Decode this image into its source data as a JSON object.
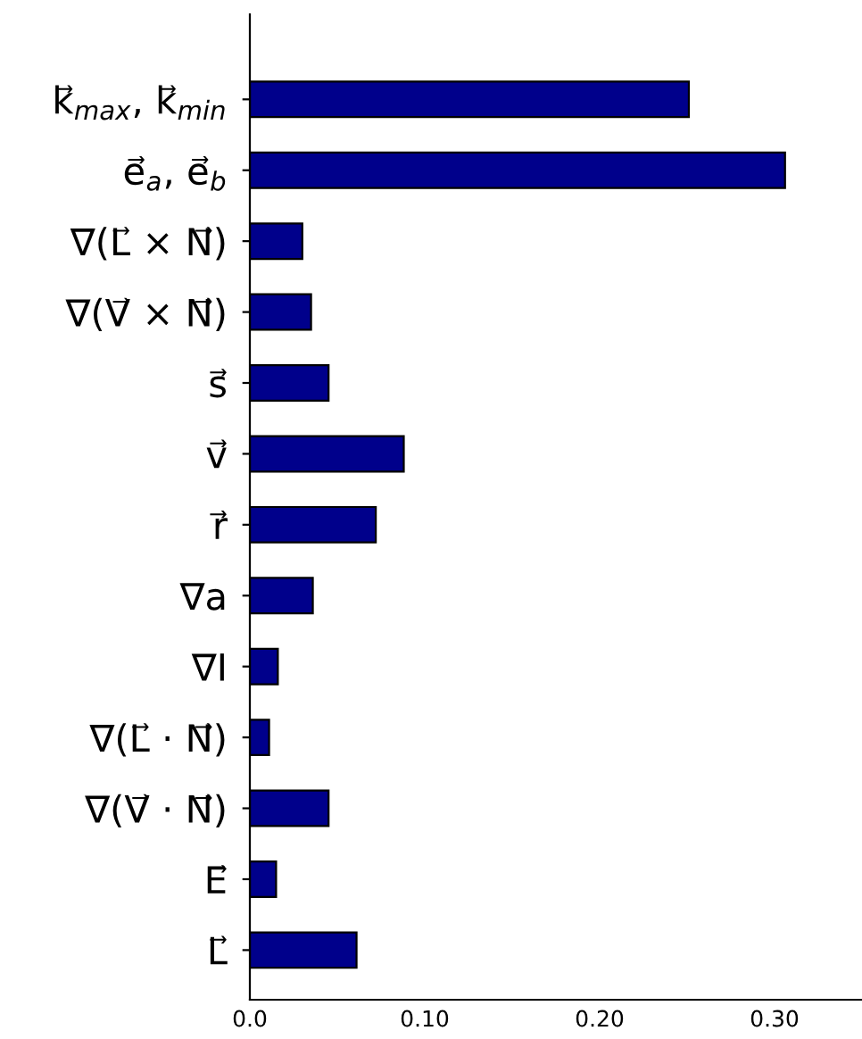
{
  "chart_data": {
    "type": "bar",
    "orientation": "horizontal",
    "categories": [
      "k⃗$_{max}$, k⃗$_{min}$",
      "e⃗$_{a}$, e⃗$_{b}$",
      "∇(L⃗ × N⃗)",
      "∇(V⃗ × N⃗)",
      "s⃗",
      "v⃗",
      "r⃗",
      "∇a",
      "∇I",
      "∇(L⃗ · N⃗)",
      "∇(V⃗ · N⃗)",
      "E⃗",
      "L⃗"
    ],
    "values": [
      0.251,
      0.306,
      0.03,
      0.035,
      0.045,
      0.088,
      0.072,
      0.036,
      0.016,
      0.011,
      0.045,
      0.015,
      0.061
    ],
    "color": "#00008b",
    "xlim": [
      0,
      0.35
    ],
    "xticks": [
      {
        "value": 0,
        "label": "0.0"
      },
      {
        "value": 0.1,
        "label": "0.10"
      },
      {
        "value": 0.2,
        "label": "0.20"
      },
      {
        "value": 0.3,
        "label": "0.30"
      }
    ],
    "grid": false
  }
}
